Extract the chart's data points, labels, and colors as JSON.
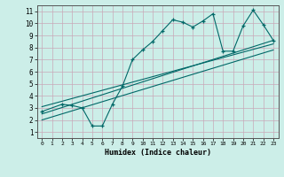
{
  "xlabel": "Humidex (Indice chaleur)",
  "bg_color": "#cceee8",
  "grid_color": "#aad8d0",
  "line_color": "#006868",
  "xlim": [
    -0.5,
    23.5
  ],
  "ylim": [
    0.5,
    11.5
  ],
  "xticks": [
    0,
    1,
    2,
    3,
    4,
    5,
    6,
    7,
    8,
    9,
    10,
    11,
    12,
    13,
    14,
    15,
    16,
    17,
    18,
    19,
    20,
    21,
    22,
    23
  ],
  "yticks": [
    1,
    2,
    3,
    4,
    5,
    6,
    7,
    8,
    9,
    10,
    11
  ],
  "series1_x": [
    0,
    2,
    3,
    4,
    5,
    6,
    7,
    8,
    9,
    10,
    11,
    12,
    13,
    14,
    15,
    16,
    17,
    18,
    19,
    20,
    21,
    22,
    23
  ],
  "series1_y": [
    2.7,
    3.3,
    3.2,
    3.0,
    1.5,
    1.5,
    3.3,
    4.8,
    7.0,
    7.8,
    8.5,
    9.4,
    10.3,
    10.1,
    9.7,
    10.2,
    10.8,
    7.7,
    7.7,
    9.8,
    11.1,
    9.9,
    8.6
  ],
  "series2_x": [
    0,
    23
  ],
  "series2_y": [
    2.5,
    8.6
  ],
  "series3_x": [
    0,
    23
  ],
  "series3_y": [
    3.1,
    8.3
  ],
  "series4_x": [
    0,
    23
  ],
  "series4_y": [
    2.0,
    7.8
  ]
}
